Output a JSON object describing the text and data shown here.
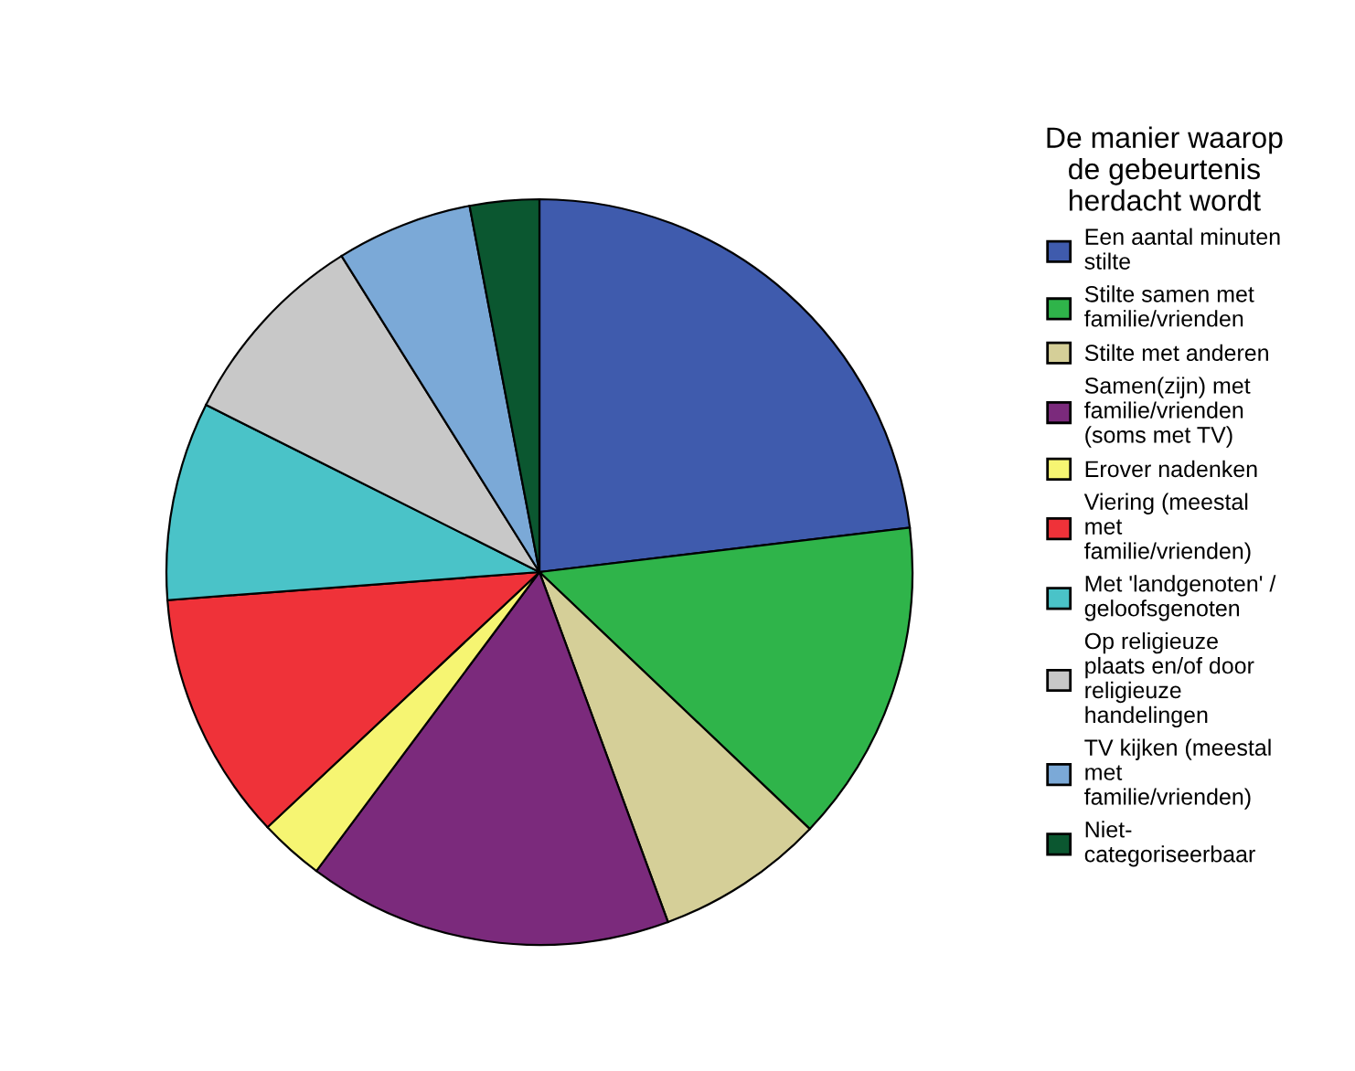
{
  "chart_data": {
    "type": "pie",
    "legend_title": "De manier waarop\nde gebeurtenis\nherdacht wordt",
    "legend": "right",
    "categories": [
      "Een aantal minuten\nstilte",
      "Stilte samen met\nfamilie/vrienden",
      "Stilte met anderen",
      "Samen(zijn) met\nfamilie/vrienden\n(soms met TV)",
      "Erover nadenken",
      "Viering (meestal\nmet\nfamilie/vrienden)",
      "Met 'landgenoten' /\ngeloofsgenoten",
      "Op religieuze\nplaats en/of door\nreligieuze\nhandelingen",
      "TV kijken (meestal\nmet\nfamilie/vrienden)",
      "Niet-\ncategoriseerbaar"
    ],
    "values": [
      23.1,
      14.0,
      7.3,
      15.8,
      2.8,
      10.8,
      8.6,
      8.7,
      5.9,
      3.0
    ],
    "colors": [
      "#3f5bad",
      "#2fb44a",
      "#d5cf98",
      "#7b2a7c",
      "#f6f572",
      "#ef3239",
      "#4ac3c8",
      "#c8c8c8",
      "#7ba9d7",
      "#0b5730"
    ]
  }
}
